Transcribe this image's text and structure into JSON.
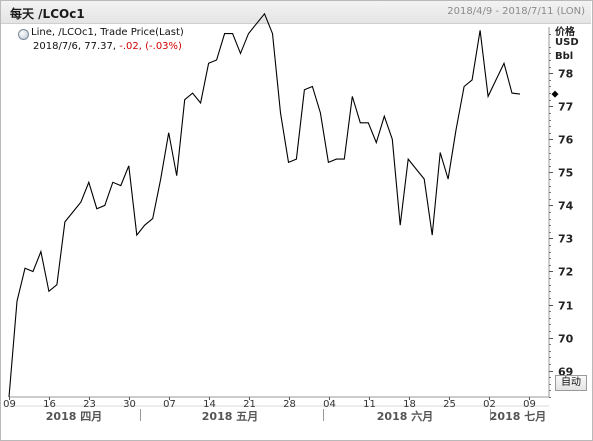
{
  "header": {
    "title": "每天 /LCOc1",
    "date_range": "2018/4/9 - 2018/7/11 (LON)"
  },
  "legend": {
    "line1": "Line, /LCOc1, Trade Price(Last)",
    "line2_prefix": "2018/7/6, 77.37, ",
    "line2_change": "-.02, (-.03%)"
  },
  "yaxis_units": [
    "价格",
    "USD",
    "Bbl"
  ],
  "auto_button_label": "自动",
  "colors": {
    "line": "#000000",
    "negative_change": "#d40000",
    "grid_tick": "#555555"
  },
  "chart_data": {
    "type": "line",
    "title": "",
    "ylabel": "价格 USD Bbl",
    "ylim": [
      68.2,
      79.4
    ],
    "yticks": [
      69,
      70,
      71,
      72,
      73,
      74,
      75,
      76,
      77,
      78
    ],
    "x_tick_labels": [
      "09",
      "16",
      "23",
      "30",
      "07",
      "14",
      "21",
      "28",
      "04",
      "11",
      "18",
      "25",
      "02",
      "09"
    ],
    "month_labels": [
      "2018 四月",
      "2018 五月",
      "2018 六月",
      "2018 七月"
    ],
    "last_value_marker": 77.37,
    "series": [
      {
        "values": [
          68.2,
          71.1,
          72.1,
          72.0,
          72.6,
          71.4,
          71.6,
          73.5,
          73.8,
          74.1,
          74.7,
          73.9,
          74.0,
          74.7,
          74.6,
          75.2,
          73.1,
          73.4,
          73.6,
          74.8,
          76.2,
          74.9,
          77.2,
          77.4,
          77.1,
          78.3,
          78.4,
          79.2,
          79.2,
          78.6,
          79.2,
          79.5,
          79.8,
          79.2,
          76.8,
          75.3,
          75.4,
          77.5,
          77.6,
          76.8,
          75.3,
          75.4,
          75.4,
          77.3,
          76.5,
          76.5,
          75.9,
          76.7,
          76.0,
          73.4,
          75.4,
          75.1,
          74.8,
          73.1,
          75.6,
          74.8,
          76.3,
          77.6,
          77.8,
          79.3,
          77.3,
          77.8,
          78.3,
          77.4,
          77.37
        ]
      }
    ]
  }
}
